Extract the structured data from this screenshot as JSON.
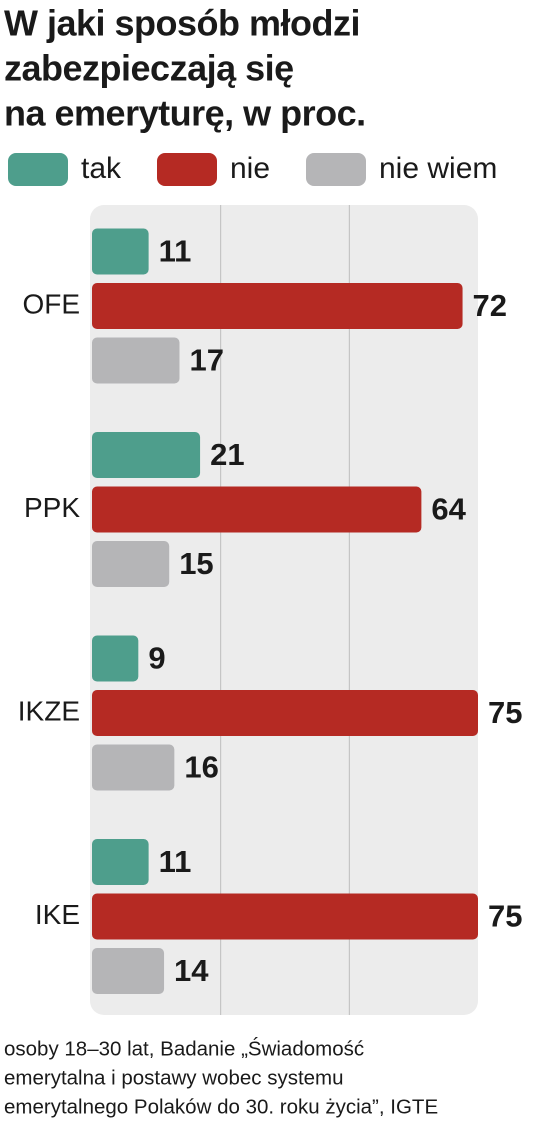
{
  "chart_data": {
    "type": "bar",
    "orientation": "horizontal",
    "title": [
      "W jaki sposób młodzi",
      "zabezpieczają się",
      "na emeryturę, w proc."
    ],
    "categories": [
      "OFE",
      "PPK",
      "IKZE",
      "IKE"
    ],
    "series": [
      {
        "name": "tak",
        "color": "#4e9e8c",
        "values": [
          11,
          21,
          9,
          11
        ]
      },
      {
        "name": "nie",
        "color": "#b52a23",
        "values": [
          72,
          64,
          75,
          75
        ]
      },
      {
        "name": "nie wiem",
        "color": "#b5b5b7",
        "values": [
          17,
          15,
          16,
          14
        ]
      }
    ],
    "xlim": [
      0,
      75
    ],
    "xticks": [
      25,
      50
    ],
    "grid": true,
    "legend": "top",
    "note": [
      "osoby 18–30 lat, Badanie „Świadomość",
      "emerytalna i postawy wobec systemu",
      "emerytalnego Polaków do 30. roku życia”, IGTE"
    ]
  }
}
